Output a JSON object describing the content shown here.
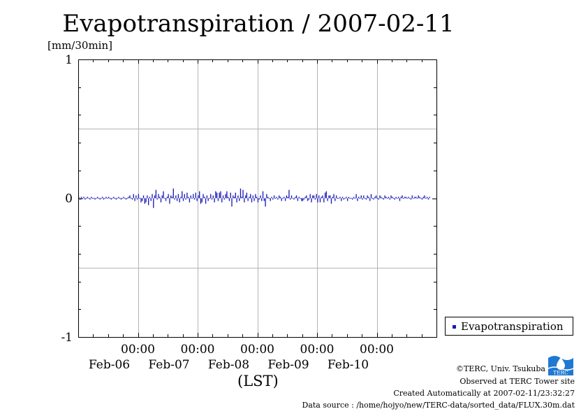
{
  "chart_data": {
    "type": "bar",
    "title": "Evapotranspiration / 2007-02-11",
    "ylabel": "[mm/30min]",
    "xlabel": "(LST)",
    "ylim": [
      -1,
      1
    ],
    "yticks": [
      {
        "value": 1,
        "label": "1"
      },
      {
        "value": 0,
        "label": "0"
      },
      {
        "value": -1,
        "label": "-1"
      }
    ],
    "ygrid": [
      -0.5,
      0.5
    ],
    "xrange_days": [
      0,
      6
    ],
    "xticks": [
      {
        "day": 1,
        "time": "00:00",
        "date": "Feb-06"
      },
      {
        "day": 2,
        "time": "00:00",
        "date": "Feb-07"
      },
      {
        "day": 3,
        "time": "00:00",
        "date": "Feb-08"
      },
      {
        "day": 4,
        "time": "00:00",
        "date": "Feb-09"
      },
      {
        "day": 5,
        "time": "00:00",
        "date": "Feb-10"
      }
    ],
    "grid": true,
    "legend_position": "right",
    "series": [
      {
        "name": "Evapotranspiration",
        "color": "#1a1ab8",
        "interval_minutes": 30,
        "values": [
          0.01,
          -0.01,
          0.01,
          0.0,
          0.01,
          -0.01,
          0.0,
          0.01,
          0.0,
          -0.01,
          0.01,
          0.0,
          0.0,
          -0.01,
          0.0,
          0.01,
          0.0,
          -0.01,
          0.0,
          0.01,
          -0.01,
          0.0,
          0.01,
          0.0,
          0.01,
          0.0,
          -0.01,
          0.0,
          0.01,
          0.0,
          -0.01,
          0.0,
          0.01,
          0.0,
          -0.01,
          0.0,
          0.01,
          0.0,
          -0.01,
          0.0,
          0.01,
          0.02,
          0.0,
          -0.01,
          0.03,
          -0.02,
          0.02,
          -0.01,
          0.03,
          0.0,
          -0.03,
          -0.02,
          0.02,
          -0.04,
          -0.03,
          0.02,
          -0.05,
          0.01,
          -0.02,
          0.03,
          -0.07,
          0.02,
          0.06,
          -0.01,
          0.03,
          0.01,
          -0.03,
          0.02,
          0.05,
          0.0,
          -0.02,
          0.01,
          0.03,
          -0.04,
          0.02,
          0.01,
          0.07,
          -0.01,
          0.02,
          -0.02,
          0.03,
          -0.03,
          0.01,
          0.05,
          -0.02,
          0.03,
          -0.01,
          0.04,
          0.01,
          -0.03,
          0.02,
          0.0,
          0.03,
          -0.01,
          0.04,
          -0.02,
          0.02,
          0.05,
          -0.04,
          -0.03,
          0.03,
          0.01,
          -0.04,
          0.02,
          -0.02,
          0.0,
          0.03,
          -0.01,
          0.02,
          -0.03,
          0.05,
          0.04,
          -0.02,
          0.04,
          0.05,
          -0.03,
          0.02,
          -0.01,
          0.03,
          0.05,
          0.01,
          -0.02,
          0.04,
          -0.06,
          0.02,
          0.01,
          0.04,
          -0.03,
          0.02,
          -0.02,
          0.07,
          0.01,
          0.06,
          -0.03,
          0.02,
          0.04,
          -0.02,
          0.01,
          0.03,
          -0.03,
          0.02,
          -0.02,
          0.03,
          0.01,
          -0.03,
          -0.01,
          0.02,
          -0.02,
          0.05,
          -0.02,
          -0.06,
          0.03,
          0.01,
          0.0,
          -0.02,
          0.01,
          -0.01,
          0.02,
          0.0,
          0.01,
          -0.01,
          0.02,
          0.01,
          -0.02,
          0.0,
          0.01,
          -0.02,
          0.02,
          0.01,
          0.06,
          -0.01,
          0.02,
          0.0,
          -0.01,
          0.01,
          0.02,
          -0.02,
          0.01,
          0.0,
          -0.02,
          -0.02,
          -0.01,
          0.01,
          0.02,
          -0.02,
          -0.01,
          0.03,
          -0.03,
          0.02,
          0.02,
          -0.01,
          0.03,
          -0.03,
          0.02,
          -0.03,
          0.01,
          0.02,
          -0.03,
          0.04,
          0.05,
          -0.02,
          0.02,
          0.02,
          -0.04,
          0.01,
          0.03,
          -0.02,
          0.02,
          0.0,
          0.0,
          0.01,
          -0.02,
          0.01,
          -0.01,
          0.0,
          0.01,
          -0.02,
          0.01,
          0.0,
          0.0,
          -0.01,
          0.01,
          0.0,
          0.03,
          -0.02,
          0.01,
          0.0,
          0.02,
          -0.01,
          0.02,
          0.0,
          -0.01,
          0.02,
          0.01,
          -0.02,
          0.03,
          0.0,
          -0.01,
          0.01,
          0.02,
          0.0,
          -0.01,
          0.02,
          0.01,
          0.0,
          -0.01,
          0.02,
          0.01,
          0.0,
          0.01,
          -0.01,
          0.02,
          0.01,
          0.0,
          -0.01,
          0.01,
          0.0,
          0.01,
          -0.02,
          0.01,
          0.02,
          0.0,
          0.01,
          0.01,
          0.0,
          0.01,
          0.0,
          -0.01,
          0.02,
          0.0,
          0.01,
          0.01,
          0.0,
          0.02,
          0.01,
          0.0,
          -0.01,
          0.01,
          0.02,
          0.0,
          0.01,
          -0.01,
          0.01
        ]
      }
    ]
  },
  "legend": {
    "label": "Evapotranspiration"
  },
  "credits": {
    "line1": "©TERC, Univ. Tsukuba",
    "line2": "Observed at TERC Tower site",
    "line3": "Created Automatically at 2007-02-11/23:32:27",
    "line4": "Data source : /home/hojyo/new/TERC-data/sorted_data/FLUX.30m.dat"
  },
  "logo": {
    "text": "TERC",
    "color": "#1f78d1"
  }
}
